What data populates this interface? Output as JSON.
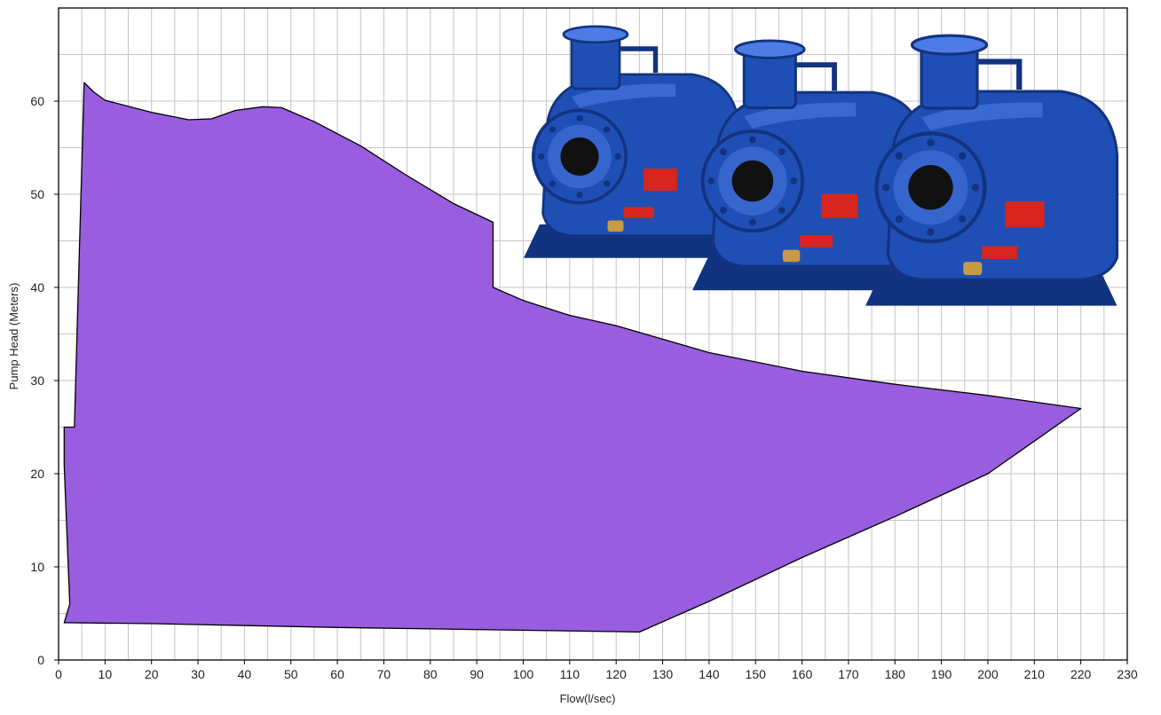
{
  "chart_data": {
    "type": "area",
    "title": "",
    "xlabel": "Flow(l/sec)",
    "ylabel": "Pump Head (Meters)",
    "xlim": [
      0,
      230
    ],
    "ylim": [
      0,
      70
    ],
    "x_ticks": [
      0,
      10,
      20,
      30,
      40,
      50,
      60,
      70,
      80,
      90,
      100,
      110,
      120,
      130,
      140,
      150,
      160,
      170,
      180,
      190,
      200,
      210,
      220,
      230
    ],
    "y_ticks": [
      0,
      10,
      20,
      30,
      40,
      50,
      60
    ],
    "grid": true,
    "grid_x_step": 5,
    "grid_y_step": 5,
    "legend": "none",
    "fill_color": "#995ddf",
    "outline_color": "#000000",
    "series": [
      {
        "name": "",
        "points": [
          [
            1.2,
            4.0
          ],
          [
            2.4,
            6.0
          ],
          [
            1.2,
            21.0
          ],
          [
            1.2,
            25.0
          ],
          [
            3.4,
            25.0
          ],
          [
            5.5,
            62.0
          ],
          [
            7.5,
            61.0
          ],
          [
            10,
            60.1
          ],
          [
            20,
            58.8
          ],
          [
            28,
            58.0
          ],
          [
            33,
            58.1
          ],
          [
            38,
            59.0
          ],
          [
            44,
            59.4
          ],
          [
            48,
            59.3
          ],
          [
            55,
            57.8
          ],
          [
            65,
            55.2
          ],
          [
            75,
            52.0
          ],
          [
            85,
            49.0
          ],
          [
            93.5,
            47.0
          ],
          [
            93.5,
            40.0
          ],
          [
            100,
            38.6
          ],
          [
            110,
            37.0
          ],
          [
            120,
            35.9
          ],
          [
            140,
            33.0
          ],
          [
            160,
            31.0
          ],
          [
            180,
            29.6
          ],
          [
            200,
            28.4
          ],
          [
            220,
            27.0
          ],
          [
            200,
            20.0
          ],
          [
            180,
            15.4
          ],
          [
            160,
            11.0
          ],
          [
            140,
            6.3
          ],
          [
            125,
            3.0
          ],
          [
            120,
            3.05
          ],
          [
            60,
            3.5
          ],
          [
            20,
            3.9
          ],
          [
            2,
            4.0
          ]
        ]
      }
    ]
  },
  "photo": {
    "name": "self-priming-pump-units",
    "count": 3,
    "primary_color": "#1f4fb4",
    "shadow_color": "#123380",
    "highlight_color": "#4d7ce6",
    "label_color": "#d7251f",
    "brass_color": "#c89a41"
  }
}
